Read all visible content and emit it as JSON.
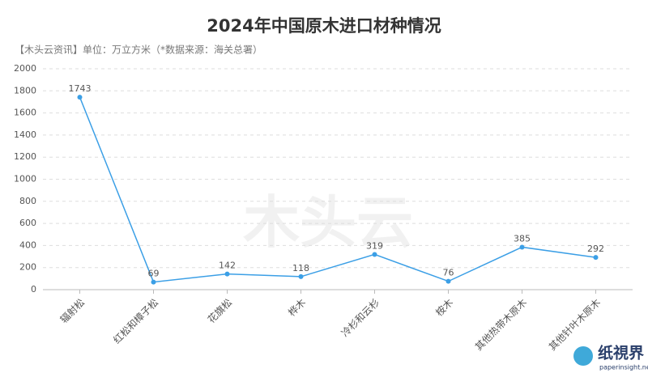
{
  "chart_data": {
    "type": "line",
    "title": "2024年中国原木进口材种情况",
    "subtitle": "【木头云资讯】单位：万立方米（*数据来源：海关总署）",
    "categories": [
      "辐射松",
      "红松和樟子松",
      "花旗松",
      "桦木",
      "冷杉和云杉",
      "桉木",
      "其他热带木原木",
      "其他针叶木原木"
    ],
    "values": [
      1743,
      69,
      142,
      118,
      319,
      76,
      385,
      292
    ],
    "color": "#3b9fe6",
    "ylim": [
      0,
      2000
    ],
    "yticks": [
      0,
      200,
      400,
      600,
      800,
      1000,
      1200,
      1400,
      1600,
      1800,
      2000
    ],
    "grid": true,
    "watermark": "木头云",
    "logo": "纸視界",
    "logo_url": "paperinsight.net"
  }
}
